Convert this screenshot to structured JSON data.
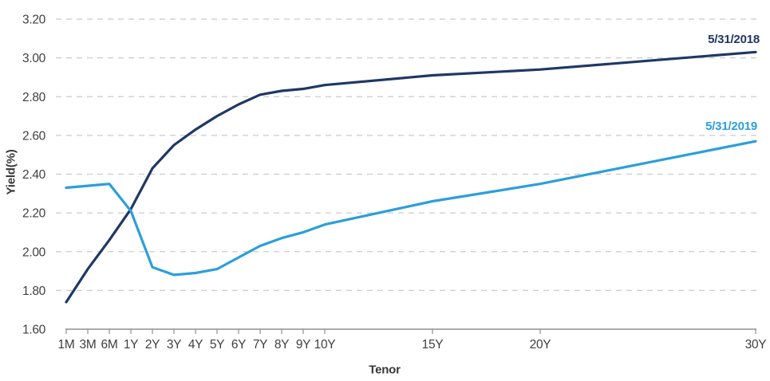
{
  "chart_data": {
    "type": "line",
    "title": "",
    "xlabel": "Tenor",
    "ylabel": "Yield(%)",
    "x_ticklabels": [
      "1M",
      "3M",
      "6M",
      "1Y",
      "2Y",
      "3Y",
      "4Y",
      "5Y",
      "6Y",
      "7Y",
      "8Y",
      "9Y",
      "10Y",
      "15Y",
      "20Y",
      "30Y"
    ],
    "x_years": [
      0.083,
      0.25,
      0.5,
      1,
      2,
      3,
      4,
      5,
      6,
      7,
      8,
      9,
      10,
      15,
      20,
      30
    ],
    "yticks": [
      "3.20",
      "3.00",
      "2.80",
      "2.60",
      "2.40",
      "2.20",
      "2.00",
      "1.80",
      "1.60"
    ],
    "ylim": [
      1.6,
      3.2
    ],
    "grid": "horizontal-dashed",
    "legend_position": "inline-end-labels",
    "series": [
      {
        "name": "5/31/2018",
        "color": "#1F3864",
        "values": [
          1.74,
          1.91,
          2.06,
          2.22,
          2.43,
          2.55,
          2.63,
          2.7,
          2.76,
          2.81,
          2.83,
          2.84,
          2.86,
          2.91,
          2.94,
          3.03
        ]
      },
      {
        "name": "5/31/2019",
        "color": "#2B9FD9",
        "values": [
          2.33,
          2.34,
          2.35,
          2.21,
          1.92,
          1.88,
          1.89,
          1.91,
          1.97,
          2.03,
          2.07,
          2.1,
          2.14,
          2.26,
          2.35,
          2.57
        ]
      }
    ]
  }
}
